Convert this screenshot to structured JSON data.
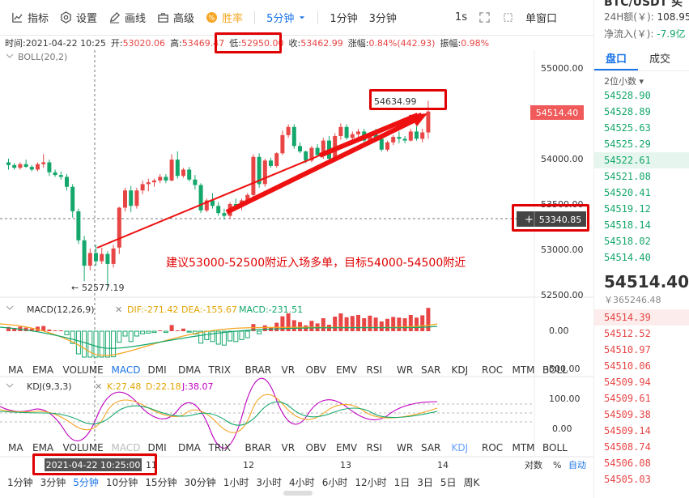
{
  "toolbar": {
    "indicators": "指标",
    "settings": "设置",
    "draw": "画线",
    "advanced": "高级",
    "win_rate": "胜率",
    "interval": "5分钟",
    "interval_1m": "1分钟",
    "interval_3m": "3分钟",
    "refresh": "1s",
    "single_window": "单窗口"
  },
  "info": {
    "time_label": "时间:",
    "time": "2021-04-22 10:25",
    "open_label": "开:",
    "open": "53020.06",
    "high_label": "高:",
    "high": "53469.47",
    "low_label": "低:",
    "low": "52950.00",
    "close_label": "收:",
    "close": "53462.99",
    "change_label": "涨幅:",
    "change": "0.84%(442.93)",
    "amp_label": "振幅:",
    "amp": "0.98%"
  },
  "main": {
    "boll_label": "BOLL(20,2)",
    "price_ticks": [
      "55000.00",
      "54500.00",
      "54000.00",
      "53500.00",
      "53000.00",
      "52500.00"
    ],
    "current_price_tag": "54514.40",
    "crosshair_tag": "53340.85",
    "high_marker": "54634.99",
    "low_marker": "52577.19",
    "annotation": "建议53000-52500附近入场多单，目标54000-54500附近"
  },
  "macd": {
    "label": "MACD(12,26,9)",
    "dif": "DIF:-271.42",
    "dea": "DEA:-155.67",
    "macd": "MACD:-231.51",
    "ticks": [
      "0.00",
      "-500.00"
    ]
  },
  "indicator_tabs": [
    "MA",
    "EMA",
    "VOLUME",
    "MACD",
    "DMI",
    "DMA",
    "TRIX",
    "BRAR",
    "VR",
    "OBV",
    "EMV",
    "RSI",
    "WR",
    "SAR",
    "KDJ",
    "ROC",
    "MTM",
    "BOLL"
  ],
  "kdj": {
    "label": "KDJ(9,3,3)",
    "k": "K:27.48",
    "d": "D:22.18",
    "j": "J:38.07",
    "ticks": [
      "100.00",
      "0.00"
    ]
  },
  "time_axis": {
    "cursor_time": "2021-04-22 10:25:00",
    "labels": [
      "11",
      "12",
      "13",
      "14"
    ],
    "log_scale": "对数",
    "percent": "%",
    "auto": "自动"
  },
  "intervals": [
    "1分钟",
    "3分钟",
    "5分钟",
    "10分钟",
    "15分钟",
    "30分钟",
    "1小时",
    "3小时",
    "4小时",
    "6小时",
    "12小时",
    "1日",
    "3日",
    "5日",
    "周K"
  ],
  "right_panel": {
    "symbol": "BTC/USDT 买",
    "vol_24h_label": "24H额(￥):",
    "vol_24h": "108.95",
    "inflow_label": "净流入(￥):",
    "inflow": "-7.9亿",
    "tab_book": "盘口",
    "tab_trades": "成交",
    "decimals": "2位小数",
    "asks": [
      "54528.90",
      "54528.89",
      "54525.63",
      "54525.29",
      "54522.61",
      "54521.08",
      "54520.41",
      "54519.12",
      "54518.14",
      "54518.02",
      "54514.40"
    ],
    "last_price": "54514.40",
    "last_cny": "￥365246.48",
    "bids": [
      "54514.39",
      "54512.52",
      "54510.97",
      "54510.06",
      "54509.94",
      "54509.61",
      "54509.38",
      "54509.14",
      "54508.74",
      "54506.08",
      "54505.03"
    ]
  },
  "colors": {
    "up": "#e84545",
    "down": "#14a76b",
    "accent": "#1a73e8",
    "highlight": "#e00000"
  },
  "chart_data": {
    "type": "candlestick",
    "ylim": [
      52300,
      55250
    ],
    "candles": [
      [
        53960,
        54000,
        53880,
        53930
      ],
      [
        53930,
        53950,
        53880,
        53900
      ],
      [
        53900,
        53960,
        53880,
        53940
      ],
      [
        53940,
        53990,
        53900,
        53910
      ],
      [
        53910,
        53930,
        53860,
        53880
      ],
      [
        53880,
        53960,
        53860,
        53940
      ],
      [
        53940,
        54050,
        53900,
        53960
      ],
      [
        53960,
        53990,
        53810,
        53850
      ],
      [
        53850,
        53880,
        53800,
        53820
      ],
      [
        53820,
        53860,
        53770,
        53800
      ],
      [
        53800,
        53830,
        53650,
        53690
      ],
      [
        53690,
        53720,
        53350,
        53420
      ],
      [
        53420,
        53450,
        53060,
        53100
      ],
      [
        53100,
        53150,
        52650,
        52820
      ],
      [
        52820,
        53010,
        52770,
        52960
      ],
      [
        52960,
        53050,
        52820,
        52870
      ],
      [
        52870,
        53020,
        52840,
        52950
      ],
      [
        52950,
        52980,
        52590,
        52840
      ],
      [
        52840,
        53050,
        52800,
        53010
      ],
      [
        53020,
        53470,
        52950,
        53460
      ],
      [
        53460,
        53680,
        53420,
        53650
      ],
      [
        53650,
        53700,
        53410,
        53480
      ],
      [
        53480,
        53680,
        53450,
        53650
      ],
      [
        53650,
        53760,
        53610,
        53720
      ],
      [
        53720,
        53780,
        53640,
        53740
      ],
      [
        53740,
        53780,
        53690,
        53760
      ],
      [
        53760,
        53830,
        53730,
        53800
      ],
      [
        53800,
        53830,
        53730,
        53760
      ],
      [
        53760,
        54050,
        53750,
        53990
      ],
      [
        53990,
        54080,
        53780,
        53810
      ],
      [
        53810,
        53900,
        53790,
        53880
      ],
      [
        53880,
        53910,
        53750,
        53770
      ],
      [
        53770,
        53820,
        53660,
        53710
      ],
      [
        53710,
        53730,
        53400,
        53430
      ],
      [
        53430,
        53560,
        53410,
        53540
      ],
      [
        53540,
        53620,
        53450,
        53480
      ],
      [
        53480,
        53520,
        53370,
        53400
      ],
      [
        53400,
        53450,
        53330,
        53370
      ],
      [
        53370,
        53520,
        53340,
        53500
      ],
      [
        53500,
        53560,
        53440,
        53480
      ],
      [
        53480,
        53560,
        53430,
        53540
      ],
      [
        53540,
        53620,
        53500,
        53600
      ],
      [
        53600,
        54050,
        53580,
        54020
      ],
      [
        54020,
        54060,
        53680,
        53720
      ],
      [
        53720,
        54000,
        53690,
        53980
      ],
      [
        53980,
        54010,
        53900,
        53920
      ],
      [
        53920,
        54070,
        53900,
        54060
      ],
      [
        54060,
        54310,
        54040,
        54260
      ],
      [
        54260,
        54380,
        54230,
        54350
      ],
      [
        54350,
        54380,
        54110,
        54140
      ],
      [
        54140,
        54180,
        54060,
        54080
      ],
      [
        54080,
        54090,
        53950,
        53980
      ],
      [
        53980,
        54140,
        53960,
        54120
      ],
      [
        54120,
        54160,
        54020,
        54040
      ],
      [
        54040,
        54230,
        54000,
        54200
      ],
      [
        54200,
        54250,
        53950,
        54000
      ],
      [
        54000,
        54280,
        53980,
        54250
      ],
      [
        54250,
        54390,
        54210,
        54350
      ],
      [
        54350,
        54380,
        54210,
        54230
      ],
      [
        54230,
        54300,
        54160,
        54270
      ],
      [
        54270,
        54330,
        54240,
        54300
      ],
      [
        54300,
        54330,
        54170,
        54200
      ],
      [
        54200,
        54290,
        54190,
        54280
      ],
      [
        54280,
        54330,
        54200,
        54220
      ],
      [
        54220,
        54240,
        54080,
        54100
      ],
      [
        54100,
        54200,
        54080,
        54180
      ],
      [
        54180,
        54260,
        54150,
        54240
      ],
      [
        54240,
        54300,
        54170,
        54220
      ],
      [
        54220,
        54250,
        54170,
        54200
      ],
      [
        54200,
        54330,
        54190,
        54300
      ],
      [
        54300,
        54360,
        54200,
        54220
      ],
      [
        54220,
        54330,
        54180,
        54290
      ],
      [
        54290,
        54640,
        54220,
        54520
      ]
    ]
  }
}
